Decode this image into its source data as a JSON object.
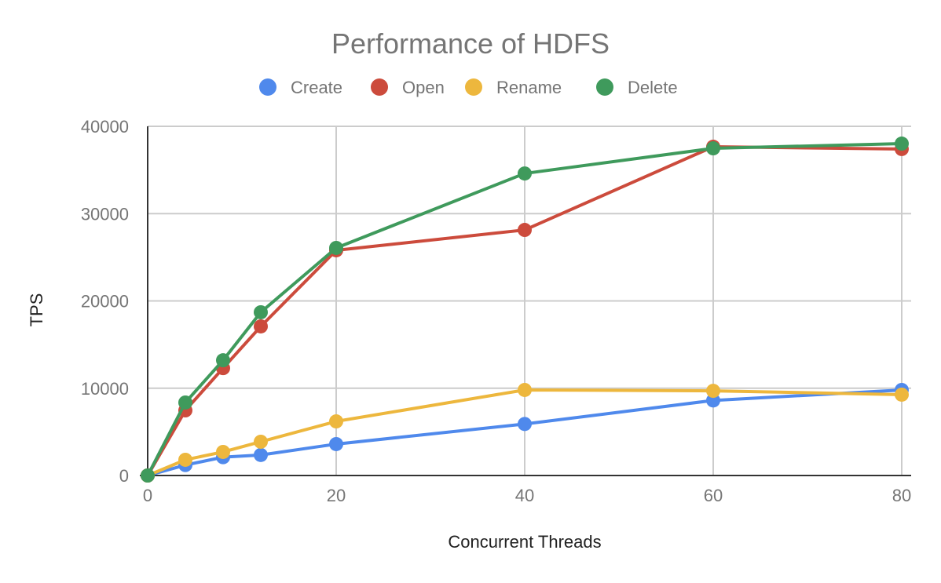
{
  "chart_data": {
    "type": "line",
    "title": "Performance of HDFS",
    "xlabel": "Concurrent Threads",
    "ylabel": "TPS",
    "x": [
      0,
      4,
      8,
      12,
      20,
      40,
      60,
      80
    ],
    "xlim": [
      0,
      81
    ],
    "ylim": [
      0,
      40000
    ],
    "xticks": [
      0,
      20,
      40,
      60,
      80
    ],
    "yticks": [
      0,
      10000,
      20000,
      30000,
      40000
    ],
    "grid": true,
    "legend_position": "top",
    "series": [
      {
        "name": "Create",
        "color": "#4f89ec",
        "values": [
          0,
          1200,
          2100,
          2350,
          3600,
          5900,
          8600,
          9800
        ]
      },
      {
        "name": "Open",
        "color": "#cc4b3c",
        "values": [
          0,
          7460,
          12300,
          17080,
          25800,
          28130,
          37660,
          37400
        ]
      },
      {
        "name": "Rename",
        "color": "#edb73d",
        "values": [
          0,
          1800,
          2700,
          3870,
          6200,
          9800,
          9700,
          9260
        ]
      },
      {
        "name": "Delete",
        "color": "#3f9a5c",
        "values": [
          0,
          8360,
          13200,
          18700,
          26070,
          34600,
          37480,
          38020
        ]
      }
    ]
  }
}
